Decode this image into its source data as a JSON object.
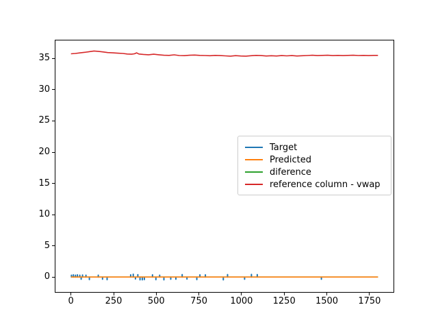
{
  "figure": {
    "background_color": "#ffffff",
    "spine_color": "#000000",
    "legend_border_color": "#cccccc",
    "legend_background": "rgba(255,255,255,0.8)"
  },
  "chart_data": {
    "type": "line",
    "title": "",
    "xlabel": "",
    "ylabel": "",
    "xlim": [
      -95,
      1895
    ],
    "ylim": [
      -2.5,
      38
    ],
    "x_ticks": [
      "0",
      "250",
      "500",
      "750",
      "1000",
      "1250",
      "1500",
      "1750"
    ],
    "x_tick_values": [
      0,
      250,
      500,
      750,
      1000,
      1250,
      1500,
      1750
    ],
    "y_ticks": [
      "0",
      "5",
      "10",
      "15",
      "20",
      "25",
      "30",
      "35"
    ],
    "y_tick_values": [
      0,
      5,
      10,
      15,
      20,
      25,
      30,
      35
    ],
    "grid": false,
    "legend_position": "center right",
    "series": [
      {
        "name": "Target",
        "color": "#1f77b4",
        "style": "spikes",
        "baseline": 0,
        "points": [
          [
            3,
            0.3
          ],
          [
            14,
            0.35
          ],
          [
            26,
            0.3
          ],
          [
            38,
            0.35
          ],
          [
            52,
            0.3
          ],
          [
            68,
            0.32
          ],
          [
            88,
            0.3
          ],
          [
            60,
            -0.35
          ],
          [
            108,
            -0.4
          ],
          [
            160,
            0.3
          ],
          [
            185,
            -0.35
          ],
          [
            212,
            -0.42
          ],
          [
            350,
            0.35
          ],
          [
            365,
            0.45
          ],
          [
            378,
            -0.3
          ],
          [
            392,
            0.38
          ],
          [
            405,
            -0.45
          ],
          [
            418,
            -0.45
          ],
          [
            430,
            -0.4
          ],
          [
            478,
            0.35
          ],
          [
            498,
            -0.42
          ],
          [
            520,
            0.3
          ],
          [
            545,
            -0.45
          ],
          [
            585,
            -0.35
          ],
          [
            615,
            -0.35
          ],
          [
            652,
            0.4
          ],
          [
            680,
            -0.32
          ],
          [
            738,
            -0.4
          ],
          [
            756,
            0.35
          ],
          [
            788,
            0.35
          ],
          [
            893,
            -0.45
          ],
          [
            918,
            0.4
          ],
          [
            1018,
            -0.35
          ],
          [
            1058,
            0.42
          ],
          [
            1092,
            0.4
          ],
          [
            1468,
            -0.35
          ]
        ]
      },
      {
        "name": "Predicted",
        "color": "#ff7f0e",
        "style": "line",
        "points": [
          [
            0,
            0
          ],
          [
            1800,
            0
          ]
        ]
      },
      {
        "name": "diference",
        "color": "#2ca02c",
        "style": "line",
        "points": [
          [
            0,
            0
          ],
          [
            1800,
            0
          ]
        ]
      },
      {
        "name": "reference column - vwap",
        "color": "#d62728",
        "style": "line",
        "points": [
          [
            0,
            35.75
          ],
          [
            25,
            35.8
          ],
          [
            55,
            35.9
          ],
          [
            85,
            36.0
          ],
          [
            110,
            36.1
          ],
          [
            135,
            36.2
          ],
          [
            160,
            36.15
          ],
          [
            190,
            36.05
          ],
          [
            215,
            35.95
          ],
          [
            245,
            35.9
          ],
          [
            275,
            35.85
          ],
          [
            305,
            35.8
          ],
          [
            330,
            35.72
          ],
          [
            355,
            35.68
          ],
          [
            372,
            35.75
          ],
          [
            385,
            35.9
          ],
          [
            398,
            35.72
          ],
          [
            425,
            35.65
          ],
          [
            455,
            35.6
          ],
          [
            485,
            35.68
          ],
          [
            515,
            35.6
          ],
          [
            545,
            35.52
          ],
          [
            575,
            35.5
          ],
          [
            605,
            35.58
          ],
          [
            635,
            35.48
          ],
          [
            665,
            35.45
          ],
          [
            695,
            35.52
          ],
          [
            725,
            35.55
          ],
          [
            755,
            35.5
          ],
          [
            785,
            35.48
          ],
          [
            815,
            35.44
          ],
          [
            845,
            35.5
          ],
          [
            875,
            35.46
          ],
          [
            905,
            35.42
          ],
          [
            935,
            35.38
          ],
          [
            965,
            35.45
          ],
          [
            995,
            35.4
          ],
          [
            1025,
            35.38
          ],
          [
            1055,
            35.44
          ],
          [
            1085,
            35.5
          ],
          [
            1115,
            35.46
          ],
          [
            1145,
            35.4
          ],
          [
            1175,
            35.44
          ],
          [
            1205,
            35.4
          ],
          [
            1235,
            35.46
          ],
          [
            1265,
            35.42
          ],
          [
            1295,
            35.46
          ],
          [
            1325,
            35.4
          ],
          [
            1355,
            35.44
          ],
          [
            1385,
            35.48
          ],
          [
            1415,
            35.52
          ],
          [
            1445,
            35.46
          ],
          [
            1475,
            35.5
          ],
          [
            1505,
            35.52
          ],
          [
            1535,
            35.46
          ],
          [
            1565,
            35.5
          ],
          [
            1595,
            35.46
          ],
          [
            1625,
            35.5
          ],
          [
            1655,
            35.52
          ],
          [
            1685,
            35.48
          ],
          [
            1715,
            35.5
          ],
          [
            1745,
            35.46
          ],
          [
            1775,
            35.5
          ],
          [
            1800,
            35.5
          ]
        ]
      }
    ],
    "draw_order": [
      0,
      2,
      1,
      3
    ]
  }
}
